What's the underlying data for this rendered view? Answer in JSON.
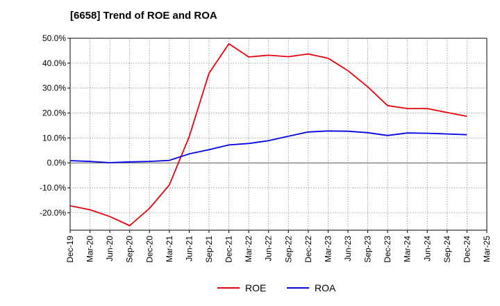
{
  "chart_data": {
    "type": "line",
    "title": "[6658]  Trend of ROE and ROA",
    "xlabel": "",
    "ylabel": "",
    "x": [
      "Dec-19",
      "Mar-20",
      "Jun-20",
      "Sep-20",
      "Dec-20",
      "Mar-21",
      "Jun-21",
      "Sep-21",
      "Dec-21",
      "Mar-22",
      "Jun-22",
      "Sep-22",
      "Dec-22",
      "Mar-23",
      "Jun-23",
      "Sep-23",
      "Dec-23",
      "Mar-24",
      "Jun-24",
      "Sep-24",
      "Dec-24",
      "Mar-25"
    ],
    "ylim": [
      -27,
      50
    ],
    "yticks": [
      50,
      40,
      30,
      20,
      10,
      0,
      -10,
      -20
    ],
    "ytick_labels": [
      "50.0%",
      "40.0%",
      "30.0%",
      "20.0%",
      "10.0%",
      "0.0%",
      "-10.0%",
      "-20.0%"
    ],
    "grid": true,
    "legend_position": "bottom",
    "series": [
      {
        "name": "ROE",
        "color": "#e8000b",
        "values": [
          -17.2,
          -18.8,
          -21.5,
          -25.2,
          -18.2,
          -8.8,
          10.5,
          36.0,
          47.8,
          42.5,
          43.2,
          42.6,
          43.7,
          42.0,
          37.0,
          30.5,
          23.0,
          21.8,
          21.8,
          20.2,
          18.7,
          null
        ]
      },
      {
        "name": "ROA",
        "color": "#0000e6",
        "values": [
          0.9,
          0.6,
          0.1,
          0.4,
          0.6,
          1.0,
          3.6,
          5.3,
          7.2,
          7.8,
          8.9,
          10.7,
          12.4,
          12.8,
          12.7,
          12.1,
          11.0,
          12.0,
          11.9,
          11.6,
          11.3,
          null
        ]
      }
    ]
  }
}
